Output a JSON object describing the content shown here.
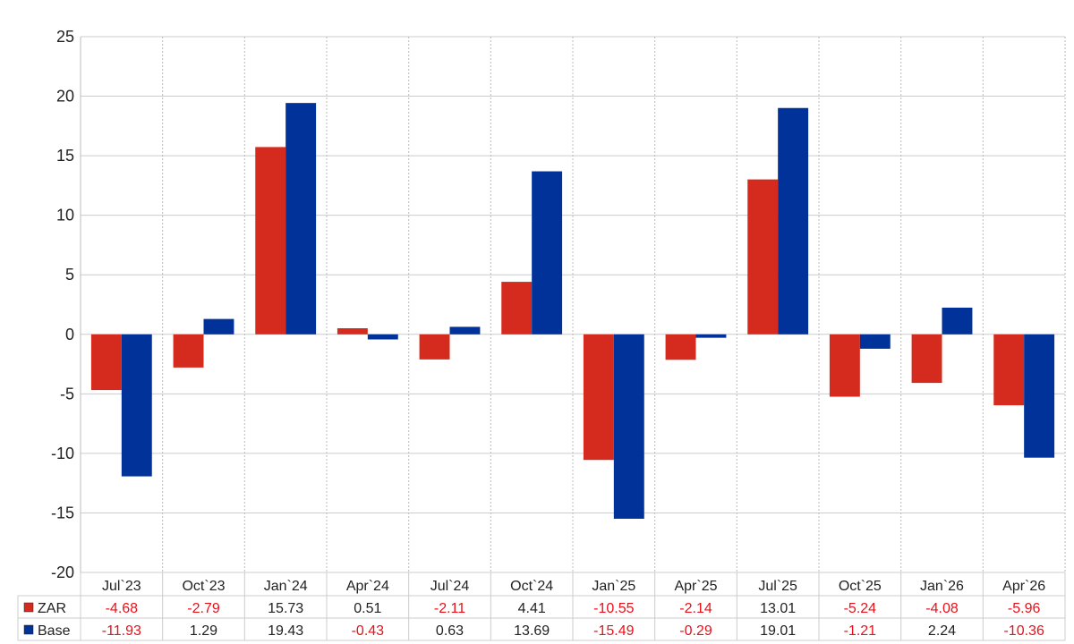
{
  "chart_data": {
    "type": "bar",
    "categories": [
      "Jul`23",
      "Oct`23",
      "Jan`24",
      "Apr`24",
      "Jul`24",
      "Oct`24",
      "Jan`25",
      "Apr`25",
      "Jul`25",
      "Oct`25",
      "Jan`26",
      "Apr`26"
    ],
    "series": [
      {
        "name": "ZAR",
        "color": "#d52b1e",
        "values": [
          -4.68,
          -2.79,
          15.73,
          0.51,
          -2.11,
          4.41,
          -10.55,
          -2.14,
          13.01,
          -5.24,
          -4.08,
          -5.96
        ]
      },
      {
        "name": "Base",
        "color": "#003299",
        "values": [
          -11.93,
          1.29,
          19.43,
          -0.43,
          0.63,
          13.69,
          -15.49,
          -0.29,
          19.01,
          -1.21,
          2.24,
          -10.36
        ]
      }
    ],
    "y_ticks": [
      "25",
      "20",
      "15",
      "10",
      "5",
      "0",
      "-5",
      "-10",
      "-15",
      "-20"
    ],
    "ylim": [
      -20,
      25
    ],
    "grid": true,
    "legend": "data-table-below",
    "data_table": {
      "rows": [
        {
          "series": "ZAR",
          "cells": [
            "-4.68",
            "-2.79",
            "15.73",
            "0.51",
            "-2.11",
            "4.41",
            "-10.55",
            "-2.14",
            "13.01",
            "-5.24",
            "-4.08",
            "-5.96"
          ]
        },
        {
          "series": "Base",
          "cells": [
            "-11.93",
            "1.29",
            "19.43",
            "-0.43",
            "0.63",
            "13.69",
            "-15.49",
            "-0.29",
            "19.01",
            "-1.21",
            "2.24",
            "-10.36"
          ]
        }
      ],
      "negative_color": "#e8111a",
      "positive_color": "#222222"
    }
  }
}
